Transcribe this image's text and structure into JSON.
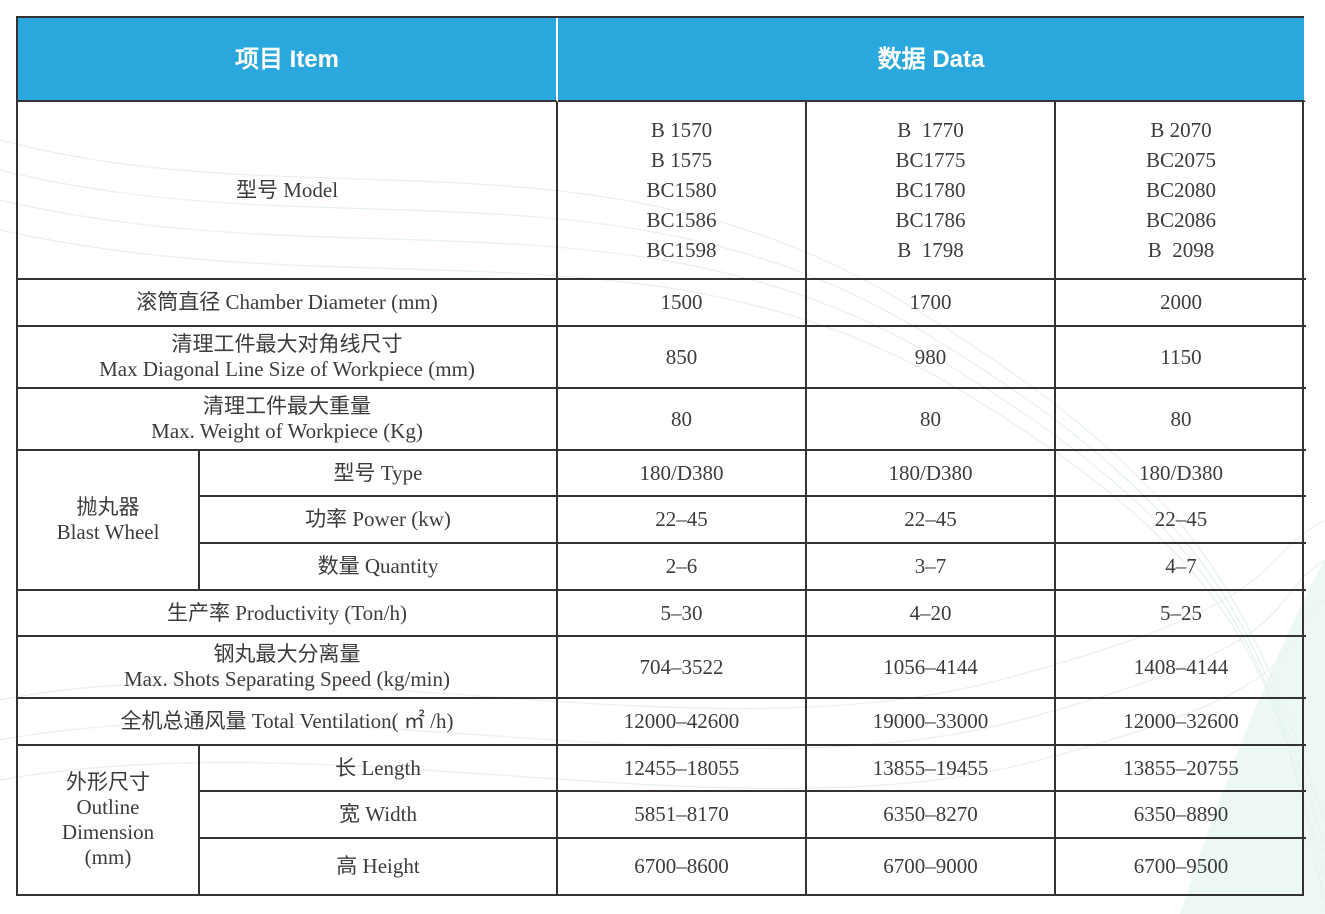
{
  "header": {
    "item_label": "项目 Item",
    "data_label": "数据 Data"
  },
  "models": {
    "label": "型号 Model",
    "col1": [
      "B 1570",
      "B 1575",
      "BC1580",
      "BC1586",
      "BC1598"
    ],
    "col2": [
      "B  1770",
      "BC1775",
      "BC1780",
      "BC1786",
      "B  1798"
    ],
    "col3": [
      "B 2070",
      "BC2075",
      "BC2080",
      "BC2086",
      "B  2098"
    ]
  },
  "rows": {
    "chamber": {
      "label": "滚筒直径 Chamber Diameter (mm)",
      "values": [
        "1500",
        "1700",
        "2000"
      ]
    },
    "diagonal": {
      "label_cn": "清理工件最大对角线尺寸",
      "label_en": "Max Diagonal Line Size of Workpiece (mm)",
      "values": [
        "850",
        "980",
        "1150"
      ]
    },
    "weight": {
      "label_cn": "清理工件最大重量",
      "label_en": "Max. Weight of Workpiece (Kg)",
      "values": [
        "80",
        "80",
        "80"
      ]
    },
    "blast": {
      "group_cn": "抛丸器",
      "group_en": "Blast Wheel",
      "type": {
        "label": "型号 Type",
        "values": [
          "180/D380",
          "180/D380",
          "180/D380"
        ]
      },
      "power": {
        "label": "功率 Power (kw)",
        "values": [
          "22–45",
          "22–45",
          "22–45"
        ]
      },
      "quantity": {
        "label": "数量 Quantity",
        "values": [
          "2–6",
          "3–7",
          "4–7"
        ]
      }
    },
    "productivity": {
      "label": "生产率 Productivity (Ton/h)",
      "values": [
        "5–30",
        "4–20",
        "5–25"
      ]
    },
    "shots": {
      "label_cn": "钢丸最大分离量",
      "label_en": "Max. Shots Separating Speed (kg/min)",
      "values": [
        "704–3522",
        "1056–4144",
        "1408–4144"
      ]
    },
    "ventilation": {
      "label": "全机总通风量 Total Ventilation( ㎡ /h)",
      "values": [
        "12000–42600",
        "19000–33000",
        "12000–32600"
      ]
    },
    "outline": {
      "group_lines": [
        "外形尺寸",
        "Outline",
        "Dimension",
        "(mm)"
      ],
      "length": {
        "label": "长 Length",
        "values": [
          "12455–18055",
          "13855–19455",
          "13855–20755"
        ]
      },
      "width": {
        "label": "宽 Width",
        "values": [
          "5851–8170",
          "6350–8270",
          "6350–8890"
        ]
      },
      "height": {
        "label": "高 Height",
        "values": [
          "6700–8600",
          "6700–9000",
          "6700–9500"
        ]
      }
    }
  },
  "colors": {
    "header_bg": "#2aa7dc",
    "header_text": "#ffffff",
    "border": "#333333",
    "text": "#3c3c3c"
  }
}
